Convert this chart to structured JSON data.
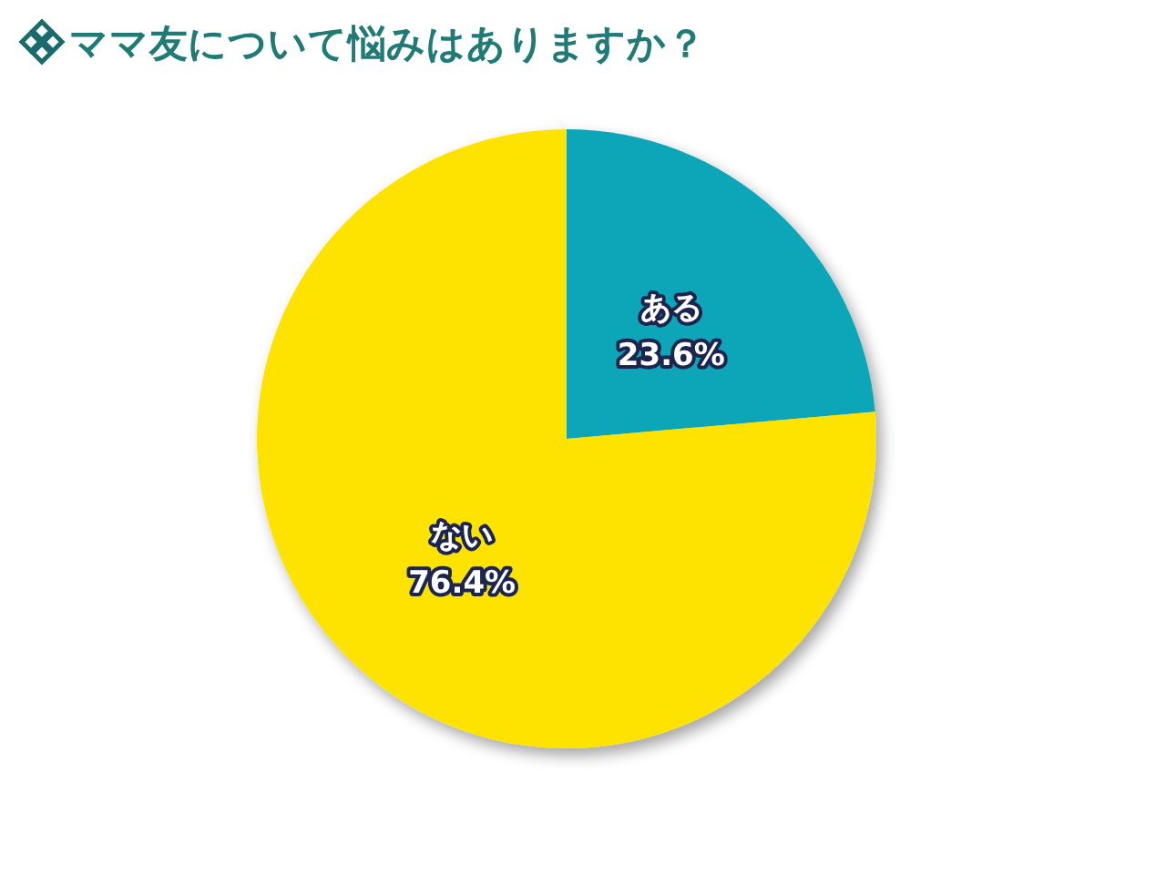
{
  "chart_data": {
    "type": "pie",
    "title": "ママ友について悩みはありますか？",
    "categories": [
      "ある",
      "ない"
    ],
    "values": [
      23.6,
      76.4
    ],
    "colors": [
      "#0fa6b8",
      "#ffe300"
    ],
    "value_labels": [
      "23.6%",
      "76.4%"
    ]
  }
}
